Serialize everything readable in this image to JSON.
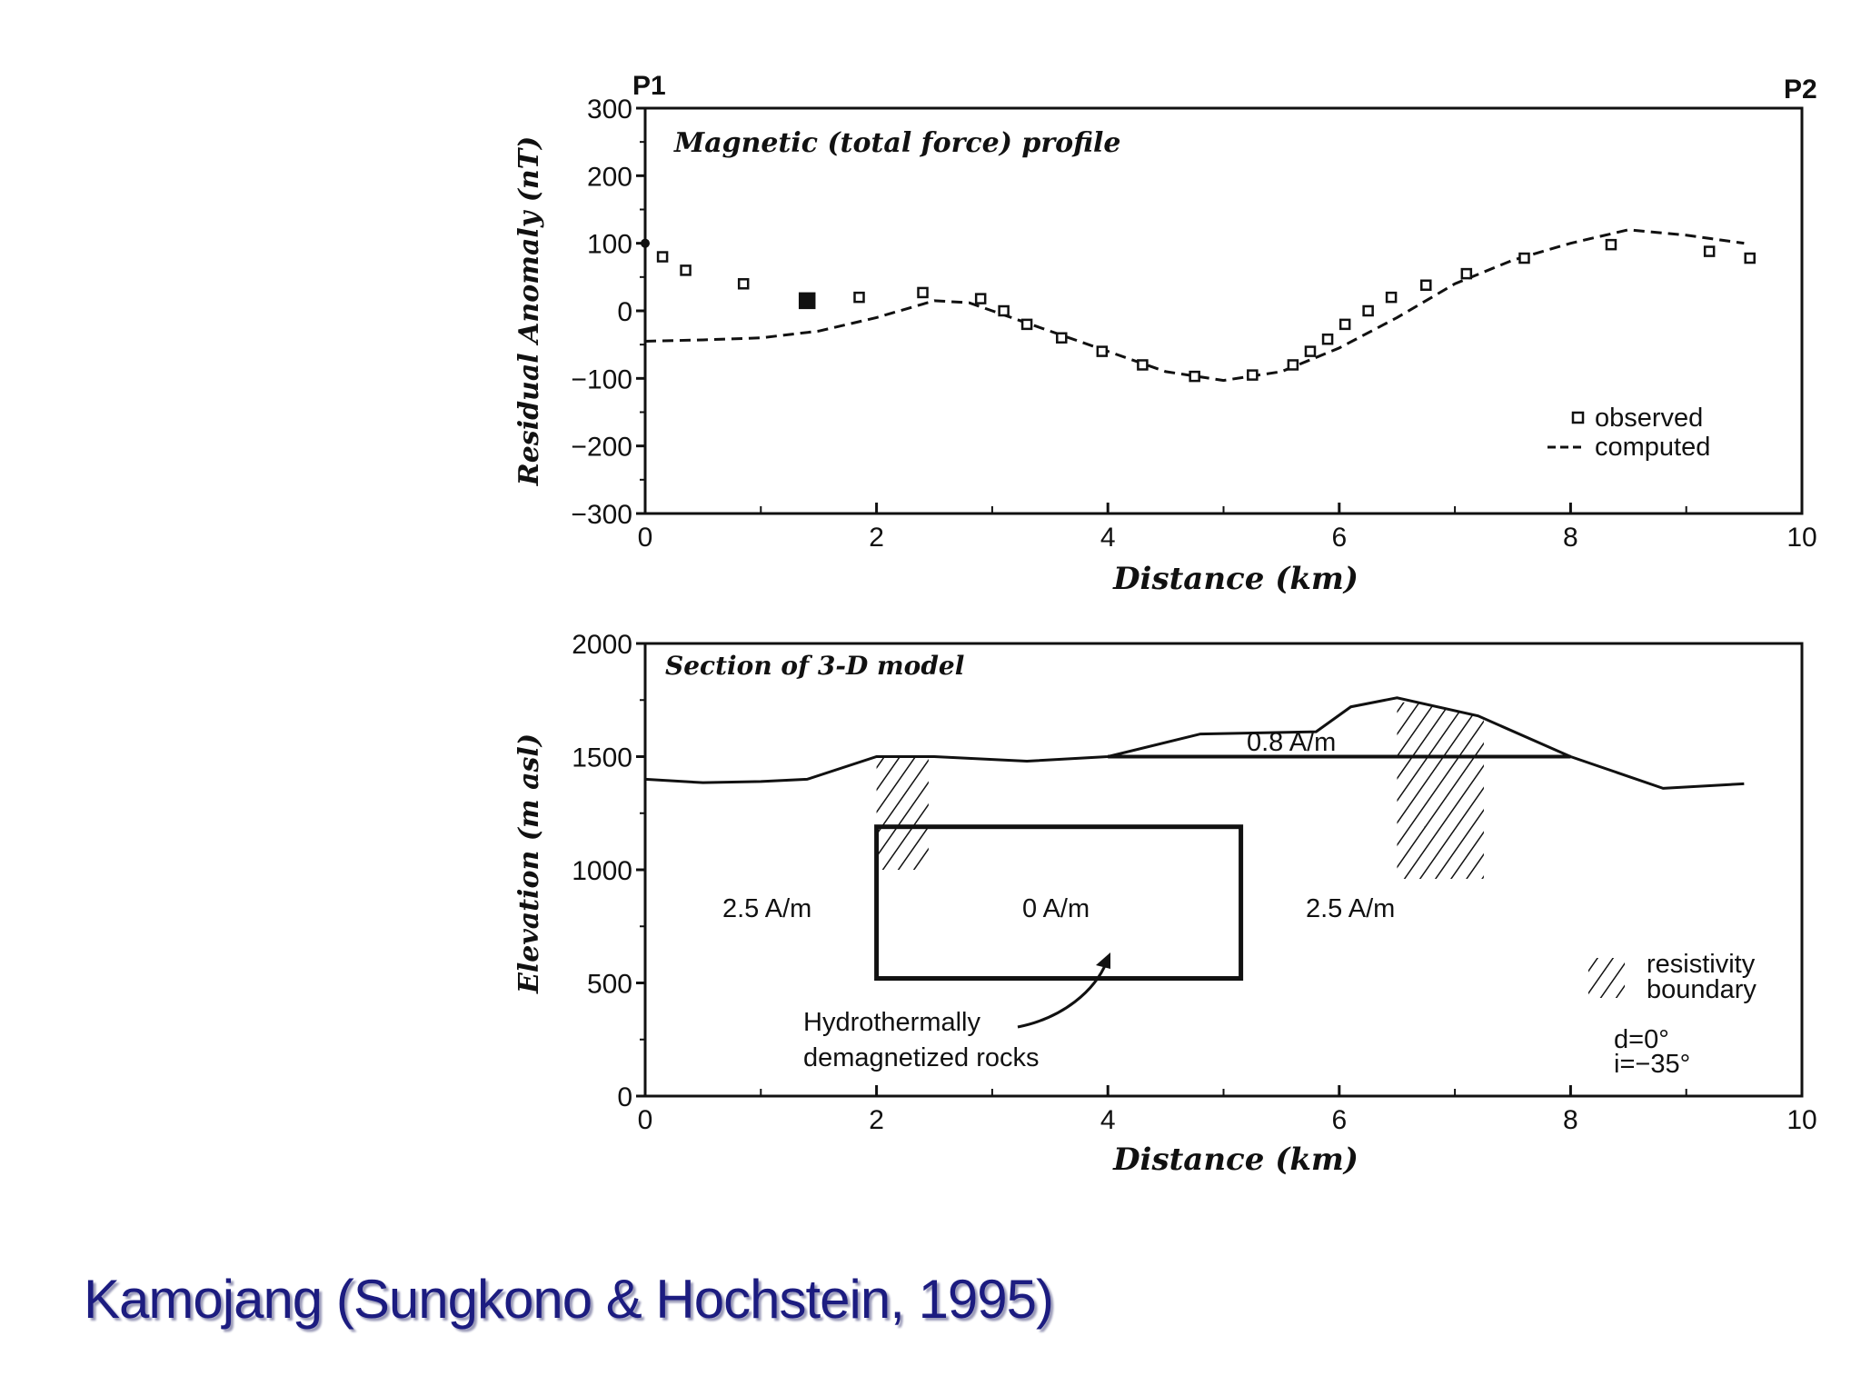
{
  "caption": "Kamojang (Sungkono & Hochstein, 1995)",
  "chart_data": [
    {
      "type": "scatter",
      "title": "Magnetic (total force) profile",
      "corner_labels": [
        "P1",
        "P2"
      ],
      "xlabel": "Distance (km)",
      "ylabel": "Residual Anomaly (nT)",
      "xlim": [
        0,
        10
      ],
      "ylim": [
        -300,
        300
      ],
      "xticks": [
        0,
        2,
        4,
        6,
        8,
        10
      ],
      "yticks": [
        300,
        200,
        100,
        0,
        -100,
        -200,
        -300
      ],
      "ytick_labels": [
        "300",
        "200",
        "100",
        "0",
        "−100",
        "−200",
        "−300"
      ],
      "legend_position": "bottom-right",
      "series": [
        {
          "name": "observed",
          "style": "open-square",
          "x": [
            0.15,
            0.35,
            0.85,
            1.4,
            1.85,
            2.4,
            2.9,
            3.1,
            3.3,
            3.6,
            3.95,
            4.3,
            4.75,
            5.25,
            5.6,
            5.75,
            5.9,
            6.05,
            6.25,
            6.45,
            6.75,
            7.1,
            7.6,
            8.35,
            9.2,
            9.55
          ],
          "y": [
            80,
            60,
            40,
            15,
            20,
            27,
            18,
            0,
            -20,
            -40,
            -60,
            -80,
            -97,
            -95,
            -80,
            -60,
            -42,
            -20,
            0,
            20,
            38,
            55,
            78,
            98,
            88,
            78
          ]
        },
        {
          "name": "computed",
          "style": "dashed",
          "x": [
            0,
            0.5,
            1,
            1.5,
            2,
            2.5,
            2.8,
            3,
            3.5,
            4,
            4.5,
            5,
            5.5,
            6,
            6.5,
            7,
            7.5,
            8,
            8.5,
            9,
            9.5
          ],
          "y": [
            -45,
            -43,
            -40,
            -30,
            -10,
            15,
            12,
            0,
            -30,
            -60,
            -90,
            -103,
            -90,
            -55,
            -10,
            40,
            75,
            100,
            120,
            112,
            100
          ]
        }
      ]
    },
    {
      "type": "line",
      "title": "Section of 3-D model",
      "xlabel": "Distance (km)",
      "ylabel": "Elevation (m asl)",
      "xlim": [
        0,
        10
      ],
      "ylim": [
        0,
        2000
      ],
      "xticks": [
        0,
        2,
        4,
        6,
        8,
        10
      ],
      "yticks": [
        0,
        500,
        1000,
        1500,
        2000
      ],
      "topography": {
        "x": [
          0,
          0.5,
          1,
          1.4,
          2,
          2.5,
          3.3,
          4,
          4.8,
          5.8,
          6.1,
          6.5,
          7.2,
          8,
          8.8,
          9.5
        ],
        "y": [
          1400,
          1385,
          1390,
          1400,
          1500,
          1500,
          1480,
          1500,
          1600,
          1610,
          1720,
          1760,
          1680,
          1500,
          1360,
          1380
        ]
      },
      "layer_boundary": {
        "x": [
          4,
          8
        ],
        "y": 1500
      },
      "demagnetized_body": {
        "x": [
          2,
          5.15
        ],
        "y": [
          520,
          1190
        ]
      },
      "resistivity_boundaries": [
        {
          "x": [
            2,
            2.45
          ],
          "y": [
            1000,
            1500
          ]
        },
        {
          "x": [
            6.5,
            7.25
          ],
          "y": [
            960,
            1740
          ]
        }
      ],
      "annotations": {
        "layer": "0.8 A/m",
        "left": "2.5 A/m",
        "body": "0 A/m",
        "right": "2.5 A/m",
        "arrow_label_1": "Hydrothermally",
        "arrow_label_2": "demagnetized rocks",
        "legend_1": "resistivity",
        "legend_2": "boundary",
        "dec": "d=0°",
        "inc": "i=−35°"
      }
    }
  ]
}
